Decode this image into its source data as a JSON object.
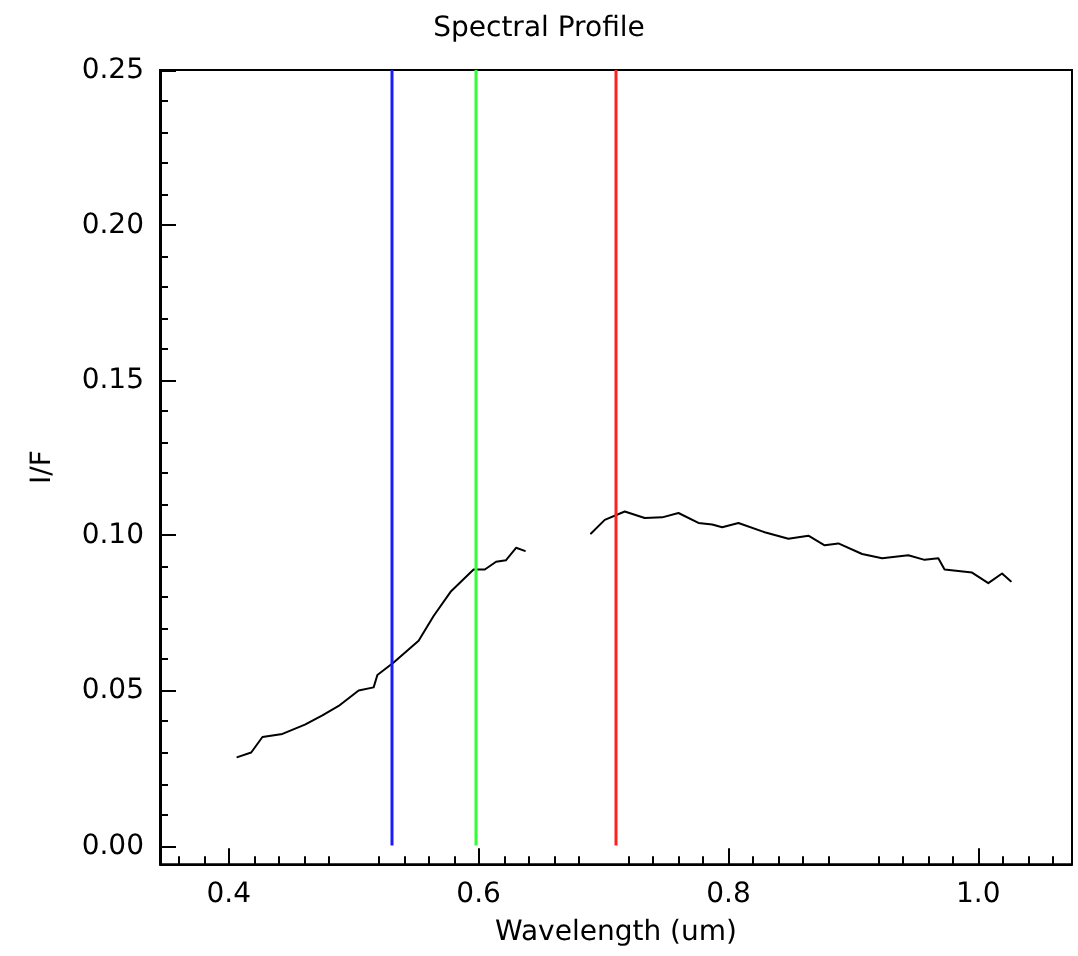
{
  "chart_data": {
    "type": "line",
    "title": "Spectral Profile",
    "xlabel": "Wavelength (um)",
    "ylabel": "I/F",
    "xlim": [
      0.345,
      1.075
    ],
    "xticks": [
      0.4,
      0.6,
      0.8,
      {
        "value": 1,
        "label": "1.0"
      }
    ],
    "ylim": [
      -0.006,
      0.25
    ],
    "yticks": [
      {
        "value": 0,
        "label": "0.00"
      },
      0.05,
      {
        "value": 0.1,
        "label": "0.10"
      },
      0.15,
      {
        "value": 0.2,
        "label": "0.20"
      },
      0.25
    ],
    "grid": false,
    "marker": "none",
    "line_style": "solid",
    "series": [
      {
        "color": "#000000",
        "x": [
          0.407,
          0.418,
          0.427,
          0.443,
          0.461,
          0.475,
          0.488,
          0.504,
          0.516,
          0.519,
          0.532,
          0.552,
          0.564,
          0.578,
          0.596,
          0.605,
          0.614,
          0.622,
          0.63,
          0.637,
          0.66,
          0.69,
          0.701,
          0.717,
          0.733,
          0.747,
          0.76,
          0.776,
          0.787,
          0.795,
          0.808,
          0.829,
          0.848,
          0.864,
          0.877,
          0.888,
          0.907,
          0.923,
          0.944,
          0.957,
          0.968,
          0.973,
          0.995,
          1.008,
          1.019,
          1.026
        ],
        "values": [
          0.0285,
          0.03,
          0.035,
          0.036,
          0.039,
          0.042,
          0.045,
          0.05,
          0.051,
          0.055,
          0.059,
          0.066,
          0.074,
          0.082,
          0.089,
          0.089,
          0.0915,
          0.092,
          0.096,
          0.095,
          null,
          0.1006,
          0.105,
          0.1077,
          0.1056,
          0.1058,
          0.1072,
          0.104,
          0.1035,
          0.1026,
          0.104,
          0.101,
          0.0989,
          0.0999,
          0.0968,
          0.0974,
          0.094,
          0.0926,
          0.0936,
          0.0921,
          0.0926,
          0.089,
          0.088,
          0.0846,
          0.0877,
          0.0852
        ]
      }
    ],
    "ref_lines": [
      {
        "axis": "x",
        "value": 0.531,
        "color": "#1a1aff"
      },
      {
        "axis": "x",
        "value": 0.597,
        "color": "#33ff33"
      },
      {
        "axis": "x",
        "value": 0.709,
        "color": "#ff2020"
      }
    ]
  }
}
